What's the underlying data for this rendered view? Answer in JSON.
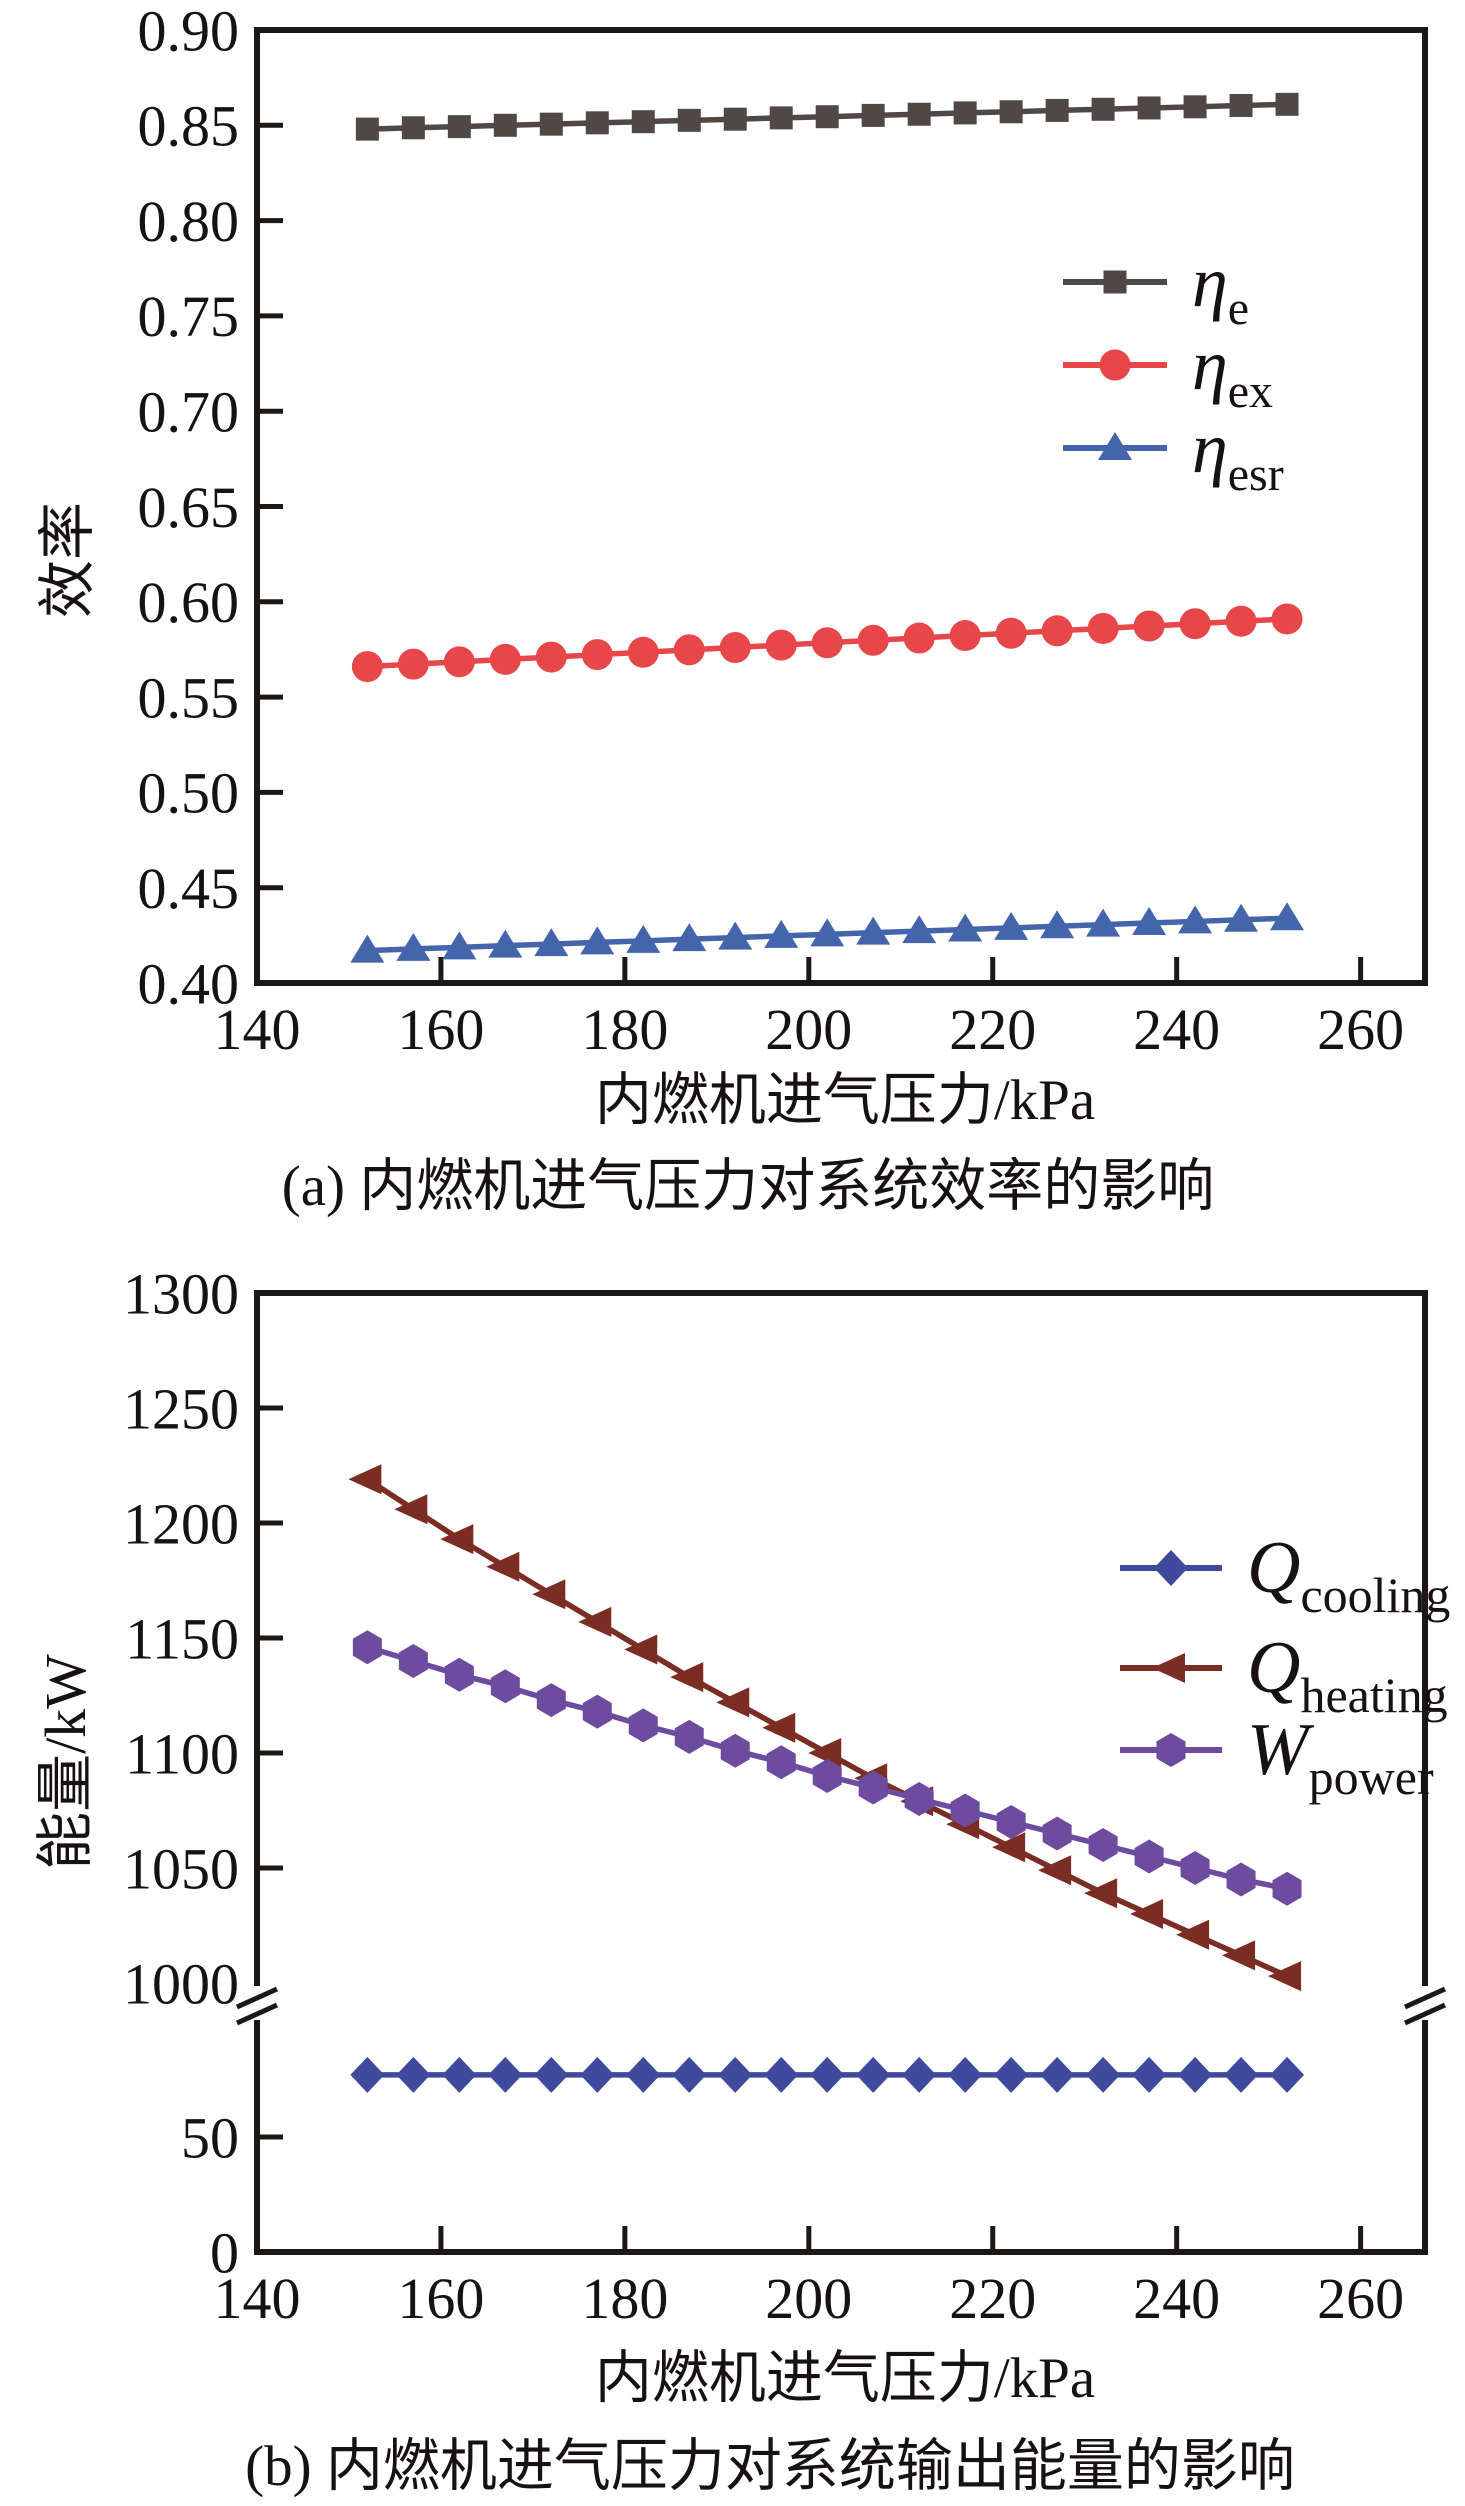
{
  "colors": {
    "background": "#ffffff",
    "axis": "#1d1716",
    "text": "#171111"
  },
  "chart_data": [
    {
      "id": "a",
      "type": "line",
      "caption": "(a) 内燃机进气压力对系统效率的影响",
      "xlabel": "内燃机进气压力/kPa",
      "ylabel": "效率",
      "xlim": [
        140,
        267
      ],
      "ylim": [
        0.4,
        0.9
      ],
      "grid": false,
      "legend_position": "upper-right-inside",
      "x_ticks": [
        {
          "v": 140,
          "label": "140",
          "tick": false
        },
        {
          "v": 160,
          "label": "160",
          "tick": true
        },
        {
          "v": 180,
          "label": "180",
          "tick": true
        },
        {
          "v": 200,
          "label": "200",
          "tick": true
        },
        {
          "v": 220,
          "label": "220",
          "tick": true
        },
        {
          "v": 240,
          "label": "240",
          "tick": true
        },
        {
          "v": 260,
          "label": "260",
          "tick": true
        }
      ],
      "y_ticks": [
        {
          "v": 0.4,
          "label": "0.40",
          "tick": false
        },
        {
          "v": 0.45,
          "label": "0.45",
          "tick": true
        },
        {
          "v": 0.5,
          "label": "0.50",
          "tick": true
        },
        {
          "v": 0.55,
          "label": "0.55",
          "tick": true
        },
        {
          "v": 0.6,
          "label": "0.60",
          "tick": true
        },
        {
          "v": 0.65,
          "label": "0.65",
          "tick": true
        },
        {
          "v": 0.7,
          "label": "0.70",
          "tick": true
        },
        {
          "v": 0.75,
          "label": "0.75",
          "tick": true
        },
        {
          "v": 0.8,
          "label": "0.80",
          "tick": true
        },
        {
          "v": 0.85,
          "label": "0.85",
          "tick": true
        },
        {
          "v": 0.9,
          "label": "0.90",
          "tick": false
        }
      ],
      "x": [
        152,
        157,
        162,
        167,
        172,
        177,
        182,
        187,
        192,
        197,
        202,
        207,
        212,
        217,
        222,
        227,
        232,
        237,
        242,
        247,
        252
      ],
      "series": [
        {
          "name": "eta-e",
          "legend_main": "η",
          "legend_sub": "e",
          "marker": "square",
          "color": "#4f4845",
          "values": [
            0.848,
            0.8487,
            0.8493,
            0.85,
            0.8506,
            0.8513,
            0.8519,
            0.8526,
            0.8532,
            0.8539,
            0.8545,
            0.8552,
            0.8558,
            0.8565,
            0.8571,
            0.8578,
            0.8584,
            0.8591,
            0.8597,
            0.8604,
            0.861
          ]
        },
        {
          "name": "eta-ex",
          "legend_main": "η",
          "legend_sub": "ex",
          "marker": "circle",
          "color": "#e8474a",
          "values": [
            0.566,
            0.5673,
            0.5685,
            0.5698,
            0.571,
            0.5723,
            0.5735,
            0.5748,
            0.576,
            0.5773,
            0.5785,
            0.5798,
            0.581,
            0.5823,
            0.5835,
            0.5848,
            0.586,
            0.5873,
            0.5885,
            0.5898,
            0.591
          ]
        },
        {
          "name": "eta-esr",
          "legend_main": "η",
          "legend_sub": "esr",
          "marker": "triangle-up",
          "color": "#4464ab",
          "values": [
            0.417,
            0.4179,
            0.4187,
            0.4196,
            0.4204,
            0.4213,
            0.4221,
            0.423,
            0.4238,
            0.4247,
            0.4255,
            0.4264,
            0.4272,
            0.4281,
            0.4289,
            0.4298,
            0.4306,
            0.4315,
            0.4323,
            0.4332,
            0.434
          ]
        }
      ]
    },
    {
      "id": "b",
      "type": "line",
      "caption": "(b) 内燃机进气压力对系统输出能量的影响",
      "xlabel": "内燃机进气压力/kPa",
      "ylabel": "能量/kW",
      "xlim": [
        140,
        267
      ],
      "ylim": [
        0,
        1300
      ],
      "axis_break": {
        "bottom_segment": [
          0,
          100
        ],
        "top_segment": [
          1000,
          1300
        ]
      },
      "grid": false,
      "legend_position": "upper-right-inside",
      "x_ticks": [
        {
          "v": 140,
          "label": "140",
          "tick": false
        },
        {
          "v": 160,
          "label": "160",
          "tick": true
        },
        {
          "v": 180,
          "label": "180",
          "tick": true
        },
        {
          "v": 200,
          "label": "200",
          "tick": true
        },
        {
          "v": 220,
          "label": "220",
          "tick": true
        },
        {
          "v": 240,
          "label": "240",
          "tick": true
        },
        {
          "v": 260,
          "label": "260",
          "tick": true
        }
      ],
      "y_ticks": [
        {
          "v": 0,
          "label": "0",
          "tick": false
        },
        {
          "v": 50,
          "label": "50",
          "tick": true
        },
        {
          "v": 1000,
          "label": "1000",
          "tick": false
        },
        {
          "v": 1050,
          "label": "1050",
          "tick": true
        },
        {
          "v": 1100,
          "label": "1100",
          "tick": true
        },
        {
          "v": 1150,
          "label": "1150",
          "tick": true
        },
        {
          "v": 1200,
          "label": "1200",
          "tick": true
        },
        {
          "v": 1250,
          "label": "1250",
          "tick": true
        },
        {
          "v": 1300,
          "label": "1300",
          "tick": false
        }
      ],
      "x": [
        152,
        157,
        162,
        167,
        172,
        177,
        182,
        187,
        192,
        197,
        202,
        207,
        212,
        217,
        222,
        227,
        232,
        237,
        242,
        247,
        252
      ],
      "series": [
        {
          "name": "q-cooling",
          "legend_main": "Q",
          "legend_sub": "cooling",
          "marker": "diamond",
          "color": "#3f4a9d",
          "values": [
            77,
            77,
            77,
            77,
            77,
            77,
            77,
            77,
            77,
            77,
            77,
            77,
            77,
            77,
            77,
            77,
            77,
            77,
            77,
            77,
            77
          ]
        },
        {
          "name": "q-heating",
          "legend_main": "Q",
          "legend_sub": "heating",
          "marker": "triangle-left",
          "color": "#7c2d23",
          "values": [
            1219,
            1206,
            1193,
            1181,
            1169,
            1157,
            1145,
            1133,
            1122,
            1111,
            1100,
            1089,
            1079,
            1069,
            1059,
            1049,
            1039,
            1030,
            1021,
            1012,
            1003
          ]
        },
        {
          "name": "w-power",
          "legend_main": "W",
          "legend_sub": "power",
          "marker": "hexagon",
          "color": "#6d4b9e",
          "values": [
            1146,
            1140,
            1134,
            1129,
            1123,
            1118,
            1112,
            1107,
            1101,
            1096,
            1090,
            1085,
            1080,
            1075,
            1070,
            1065,
            1060,
            1055,
            1050,
            1045,
            1041
          ]
        }
      ]
    }
  ]
}
